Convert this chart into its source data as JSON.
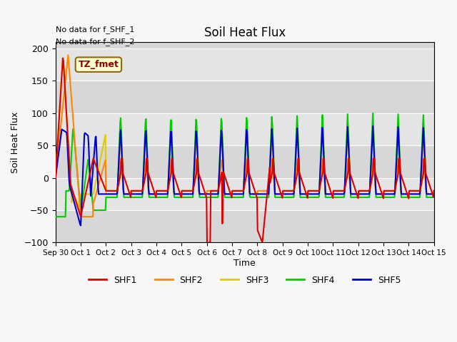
{
  "title": "Soil Heat Flux",
  "ylabel": "Soil Heat Flux",
  "xlabel": "Time",
  "ylim": [
    -100,
    210
  ],
  "yticks": [
    -100,
    -50,
    0,
    50,
    100,
    150,
    200
  ],
  "colors": {
    "SHF1": "#dd0000",
    "SHF2": "#ff8800",
    "SHF3": "#ddcc00",
    "SHF4": "#00cc00",
    "SHF5": "#0000cc"
  },
  "legend_labels": [
    "SHF1",
    "SHF2",
    "SHF3",
    "SHF4",
    "SHF5"
  ],
  "annotation_text1": "No data for f_SHF_1",
  "annotation_text2": "No data for f_SHF_2",
  "box_label": "TZ_fmet",
  "plot_bg_color": "#e8e8e8",
  "n_days": 15
}
